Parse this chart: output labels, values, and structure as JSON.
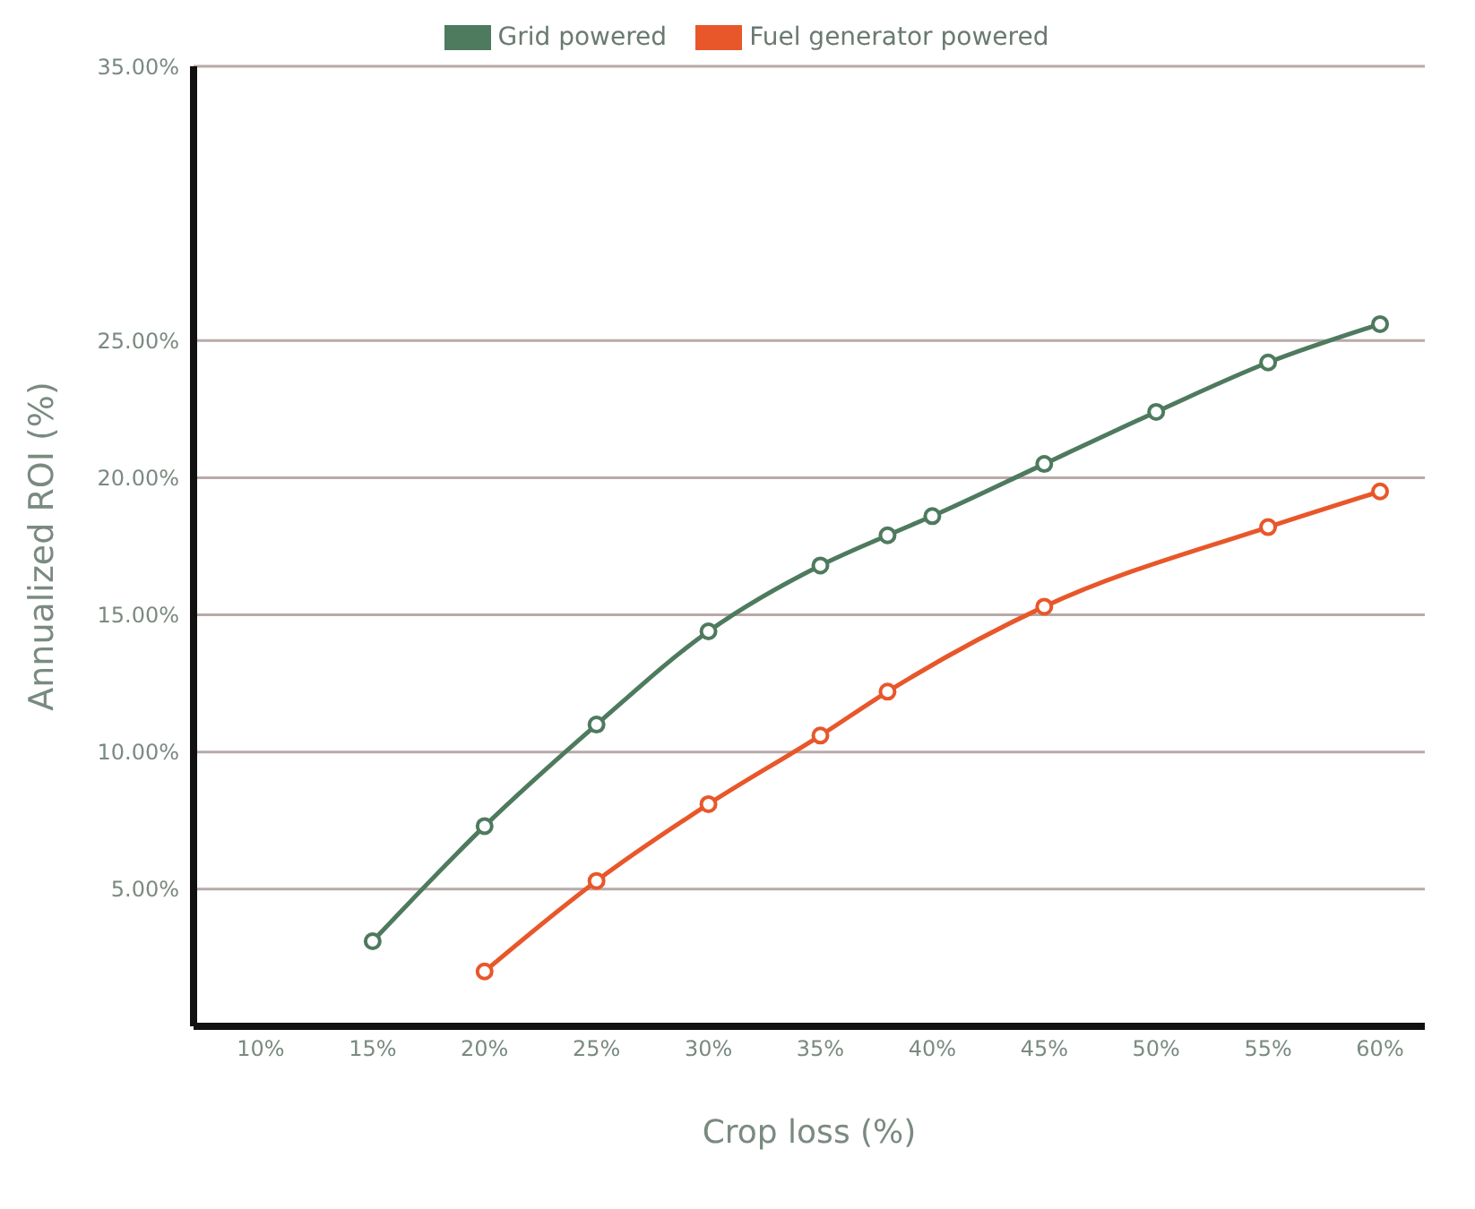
{
  "chart_data": {
    "type": "line",
    "xlabel": "Crop loss (%)",
    "ylabel": "Annualized ROI (%)",
    "xlim": [
      7,
      62
    ],
    "xticks": [
      {
        "value": 10,
        "label": "10%"
      },
      {
        "value": 15,
        "label": "15%"
      },
      {
        "value": 20,
        "label": "20%"
      },
      {
        "value": 25,
        "label": "25%"
      },
      {
        "value": 30,
        "label": "30%"
      },
      {
        "value": 35,
        "label": "35%"
      },
      {
        "value": 40,
        "label": "40%"
      },
      {
        "value": 45,
        "label": "45%"
      },
      {
        "value": 50,
        "label": "50%"
      },
      {
        "value": 55,
        "label": "55%"
      },
      {
        "value": 60,
        "label": "60%"
      }
    ],
    "ylim": [
      0,
      35
    ],
    "yticks": [
      {
        "value": 5,
        "label": "5.00%"
      },
      {
        "value": 10,
        "label": "10.00%"
      },
      {
        "value": 15,
        "label": "15.00%"
      },
      {
        "value": 20,
        "label": "20.00%"
      },
      {
        "value": 25,
        "label": "25.00%"
      },
      {
        "value": 35,
        "label": "35.00%"
      }
    ],
    "grid": "y",
    "legend": "top",
    "marker": "circle",
    "line_style": "solid",
    "series": [
      {
        "name": "Grid powered",
        "color": "#4e7a5e",
        "x": [
          15,
          20,
          25,
          30,
          35,
          38,
          40,
          45,
          50,
          55,
          60
        ],
        "values": [
          3.1,
          7.3,
          11.0,
          14.4,
          16.8,
          17.9,
          18.6,
          20.5,
          22.4,
          24.2,
          25.6
        ]
      },
      {
        "name": "Fuel generator powered",
        "color": "#e8572a",
        "x": [
          20,
          25,
          30,
          35,
          38,
          45,
          55,
          60
        ],
        "values": [
          2.0,
          5.3,
          8.1,
          10.6,
          12.2,
          15.3,
          18.2,
          19.5
        ]
      }
    ]
  }
}
